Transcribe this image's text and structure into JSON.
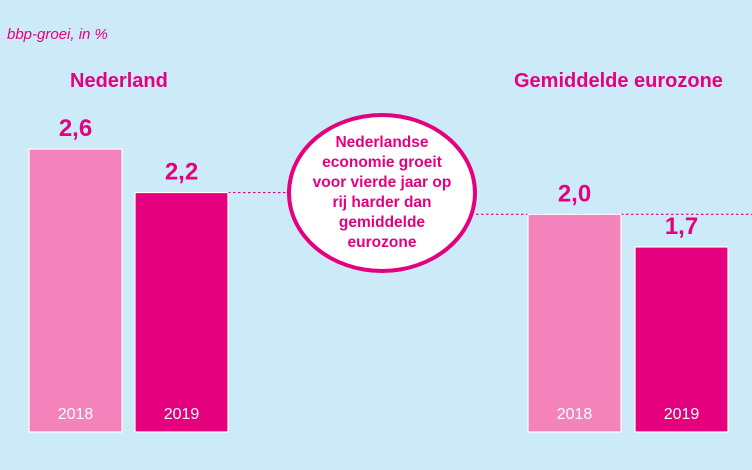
{
  "subtitle": "bbp-groei, in %",
  "callout": "Nederlandse economie groeit voor vierde jaar op rij harder dan gemiddelde eurozone",
  "colors": {
    "background": "#cdeaf8",
    "bar_2018": "#f482bb",
    "bar_2019": "#e5007e",
    "text": "#e5007e",
    "callout_bg": "#ffffff"
  },
  "chart_data": {
    "type": "bar",
    "title": "",
    "subtitle": "bbp-groei, in %",
    "ylabel": "",
    "ylim": [
      0,
      2.6
    ],
    "grid": false,
    "groups": [
      {
        "name": "Nederland",
        "categories": [
          "2018",
          "2019"
        ],
        "values": [
          2.6,
          2.2
        ],
        "value_labels": [
          "2,6",
          "2,2"
        ]
      },
      {
        "name": "Gemiddelde eurozone",
        "categories": [
          "2018",
          "2019"
        ],
        "values": [
          2.0,
          1.7
        ],
        "value_labels": [
          "2,0",
          "1,7"
        ]
      }
    ]
  }
}
